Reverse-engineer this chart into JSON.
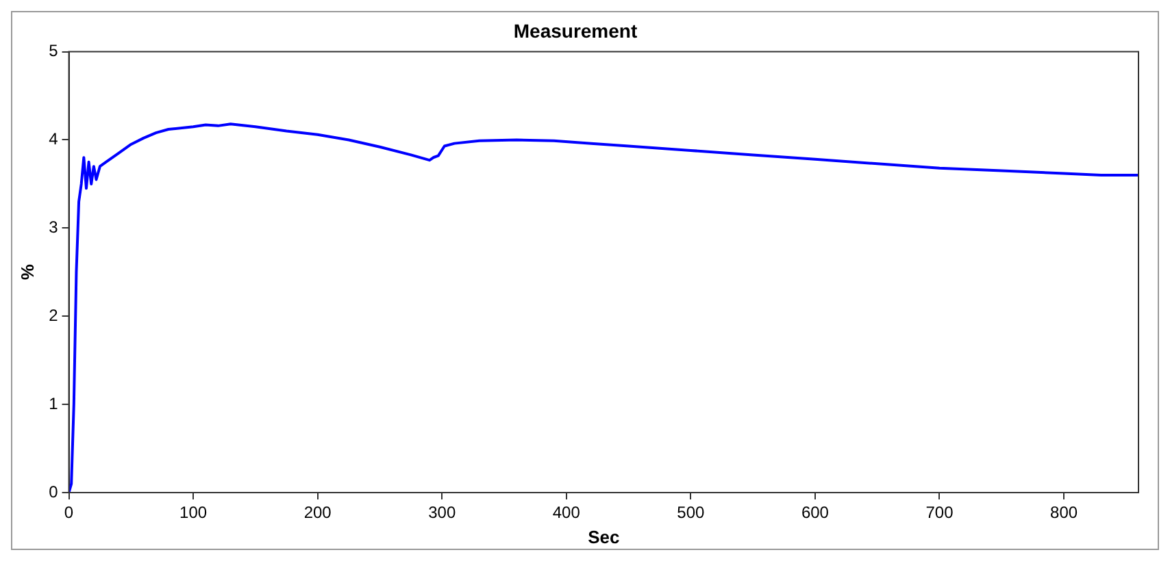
{
  "chart_data": {
    "type": "line",
    "title": "Measurement",
    "xlabel": "Sec",
    "ylabel": "%",
    "xlim": [
      0,
      860
    ],
    "xticks": [
      0,
      100,
      200,
      300,
      400,
      500,
      600,
      700,
      800
    ],
    "ylim": [
      0,
      5
    ],
    "yticks": [
      0,
      1,
      2,
      3,
      4,
      5
    ],
    "grid": false,
    "legend": false,
    "marker": "none",
    "line_style": "solid",
    "series": [
      {
        "color": "#0000ff",
        "x": [
          0,
          2,
          4,
          6,
          8,
          10,
          12,
          14,
          16,
          18,
          20,
          22,
          25,
          30,
          40,
          50,
          60,
          70,
          80,
          100,
          110,
          120,
          130,
          150,
          175,
          200,
          225,
          250,
          275,
          290,
          293,
          297,
          302,
          310,
          330,
          360,
          390,
          420,
          450,
          500,
          550,
          600,
          650,
          700,
          750,
          800,
          830,
          860
        ],
        "values": [
          0,
          0.1,
          1,
          2.5,
          3.3,
          3.5,
          3.8,
          3.45,
          3.75,
          3.5,
          3.7,
          3.55,
          3.7,
          3.75,
          3.85,
          3.95,
          4.02,
          4.08,
          4.12,
          4.15,
          4.17,
          4.16,
          4.18,
          4.15,
          4.1,
          4.06,
          4,
          3.92,
          3.83,
          3.77,
          3.8,
          3.82,
          3.93,
          3.96,
          3.99,
          4,
          3.99,
          3.96,
          3.93,
          3.88,
          3.83,
          3.78,
          3.73,
          3.68,
          3.65,
          3.62,
          3.6,
          3.6
        ]
      }
    ]
  }
}
